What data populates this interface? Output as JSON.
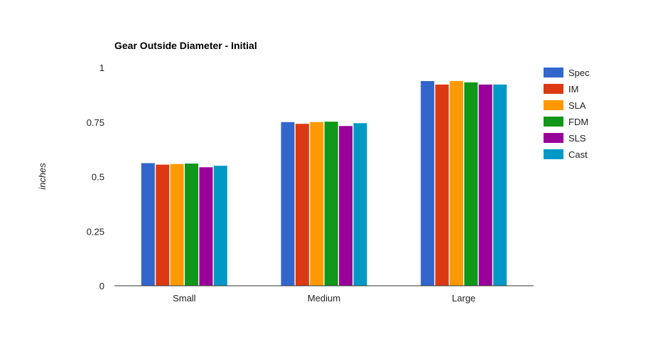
{
  "chart_data": {
    "type": "bar",
    "title": "Gear Outside Diameter - Initial",
    "xlabel": "",
    "ylabel": "inches",
    "ylim": [
      0,
      1
    ],
    "yticks": [
      0,
      0.25,
      0.5,
      0.75,
      1
    ],
    "ytick_labels": [
      "0",
      "0.25",
      "0.5",
      "0.75",
      "1"
    ],
    "categories": [
      "Small",
      "Medium",
      "Large"
    ],
    "legend_position": "right",
    "grid": false,
    "series": [
      {
        "name": "Spec",
        "color": "#3366cc",
        "values": [
          0.562,
          0.75,
          0.938
        ]
      },
      {
        "name": "IM",
        "color": "#dc3912",
        "values": [
          0.555,
          0.742,
          0.922
        ]
      },
      {
        "name": "SLA",
        "color": "#ff9900",
        "values": [
          0.558,
          0.75,
          0.938
        ]
      },
      {
        "name": "FDM",
        "color": "#109618",
        "values": [
          0.56,
          0.752,
          0.932
        ]
      },
      {
        "name": "SLS",
        "color": "#990099",
        "values": [
          0.543,
          0.732,
          0.922
        ]
      },
      {
        "name": "Cast",
        "color": "#0099c6",
        "values": [
          0.55,
          0.745,
          0.922
        ]
      }
    ]
  }
}
